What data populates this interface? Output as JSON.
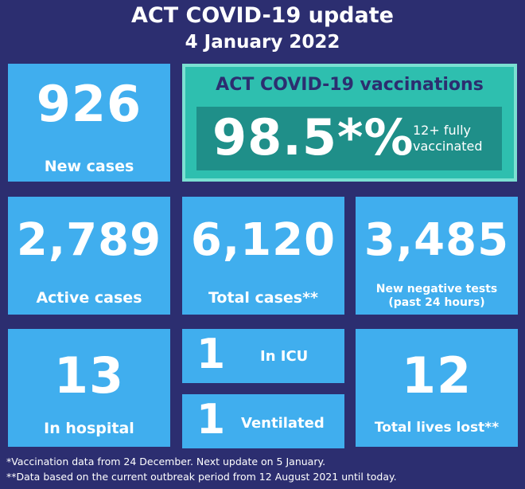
{
  "header": {
    "title": "ACT COVID-19 update",
    "date": "4 January 2022"
  },
  "new_cases": {
    "value": "926",
    "label": "New cases"
  },
  "vaccinations": {
    "title": "ACT COVID-19 vaccinations",
    "percent": "98.5*%",
    "desc_line1": "12+ fully",
    "desc_line2": "vaccinated"
  },
  "active_cases": {
    "value": "2,789",
    "label": "Active cases"
  },
  "total_cases": {
    "value": "6,120",
    "label": "Total cases**"
  },
  "negative_tests": {
    "value": "3,485",
    "label_line1": "New negative tests",
    "label_line2": "(past 24 hours)"
  },
  "hospital": {
    "value": "13",
    "label": "In hospital"
  },
  "icu": {
    "value": "1",
    "label": "In ICU"
  },
  "ventilated": {
    "value": "1",
    "label": "Ventilated"
  },
  "lives_lost": {
    "value": "12",
    "label": "Total lives lost**"
  },
  "footnotes": {
    "note1": "*Vaccination data from 24 December. Next update on 5 January.",
    "note2": "**Data based on the current outbreak period from 12 August 2021 until today."
  },
  "colors": {
    "background": "#2c2e70",
    "tile": "#40aeee",
    "vax_outer": "#2ebfaf",
    "vax_inner": "#1f8f89"
  }
}
